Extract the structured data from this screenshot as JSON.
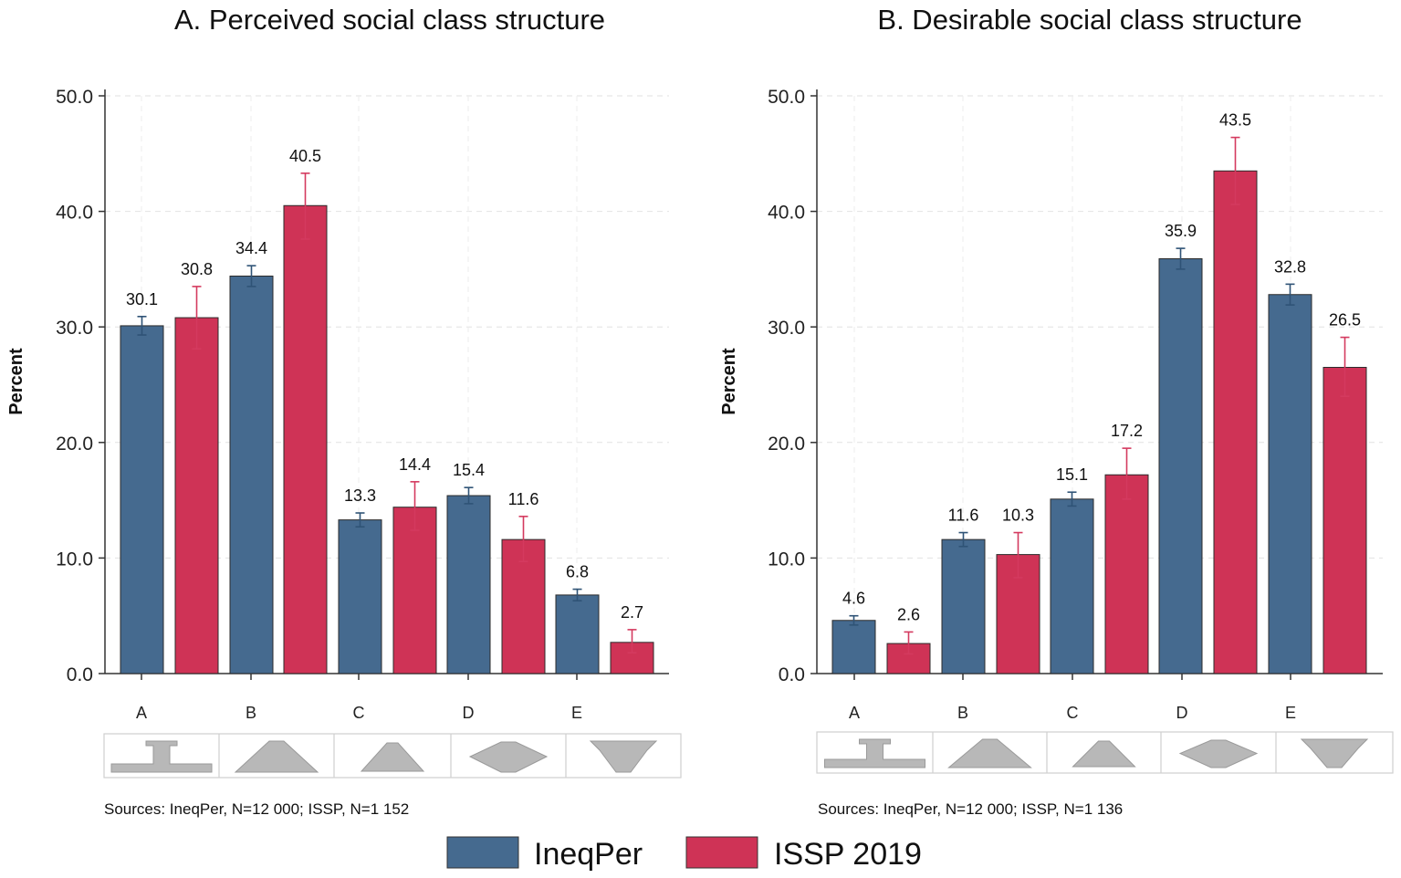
{
  "colors": {
    "ineqper": "#456a8f",
    "issp": "#cf3356",
    "issp_err": "#d43a5f",
    "ineqper_err": "#2f5376"
  },
  "legend": {
    "ineqper": "IneqPer",
    "issp": "ISSP 2019"
  },
  "chart_data": [
    {
      "type": "bar",
      "title": "A. Perceived social class structure",
      "xlabel": "",
      "ylabel": "Percent",
      "ylim": [
        0,
        50
      ],
      "yticks": [
        "0.0",
        "10.0",
        "20.0",
        "30.0",
        "40.0",
        "50.0"
      ],
      "categories": [
        "A",
        "B",
        "C",
        "D",
        "E"
      ],
      "series": [
        {
          "name": "IneqPer",
          "values": [
            30.1,
            34.4,
            13.3,
            15.4,
            6.8
          ],
          "labels": [
            "30.1",
            "34.4",
            "13.3",
            "15.4",
            "6.8"
          ],
          "ci_low": [
            29.3,
            33.5,
            12.7,
            14.7,
            6.3
          ],
          "ci_high": [
            30.9,
            35.3,
            13.9,
            16.1,
            7.3
          ]
        },
        {
          "name": "ISSP 2019",
          "values": [
            30.8,
            40.5,
            14.4,
            11.6,
            2.7
          ],
          "labels": [
            "30.8",
            "40.5",
            "14.4",
            "11.6",
            "2.7"
          ],
          "ci_low": [
            28.1,
            37.6,
            12.4,
            9.7,
            1.8
          ],
          "ci_high": [
            33.5,
            43.3,
            16.6,
            13.6,
            3.8
          ]
        }
      ],
      "source": "Sources: IneqPer, N=12 000; ISSP, N=1 152"
    },
    {
      "type": "bar",
      "title": "B. Desirable social class structure",
      "xlabel": "",
      "ylabel": "Percent",
      "ylim": [
        0,
        50
      ],
      "yticks": [
        "0.0",
        "10.0",
        "20.0",
        "30.0",
        "40.0",
        "50.0"
      ],
      "categories": [
        "A",
        "B",
        "C",
        "D",
        "E"
      ],
      "series": [
        {
          "name": "IneqPer",
          "values": [
            4.6,
            11.6,
            15.1,
            35.9,
            32.8
          ],
          "labels": [
            "4.6",
            "11.6",
            "15.1",
            "35.9",
            "32.8"
          ],
          "ci_low": [
            4.2,
            11.0,
            14.5,
            35.0,
            31.9
          ],
          "ci_high": [
            5.0,
            12.2,
            15.7,
            36.8,
            33.7
          ]
        },
        {
          "name": "ISSP 2019",
          "values": [
            2.6,
            10.3,
            17.2,
            43.5,
            26.5
          ],
          "labels": [
            "2.6",
            "10.3",
            "17.2",
            "43.5",
            "26.5"
          ],
          "ci_low": [
            1.7,
            8.3,
            15.1,
            40.6,
            24.0
          ],
          "ci_high": [
            3.6,
            12.2,
            19.5,
            46.4,
            29.1
          ]
        }
      ],
      "source": "Sources: IneqPer, N=12 000; ISSP, N=1 136"
    }
  ]
}
